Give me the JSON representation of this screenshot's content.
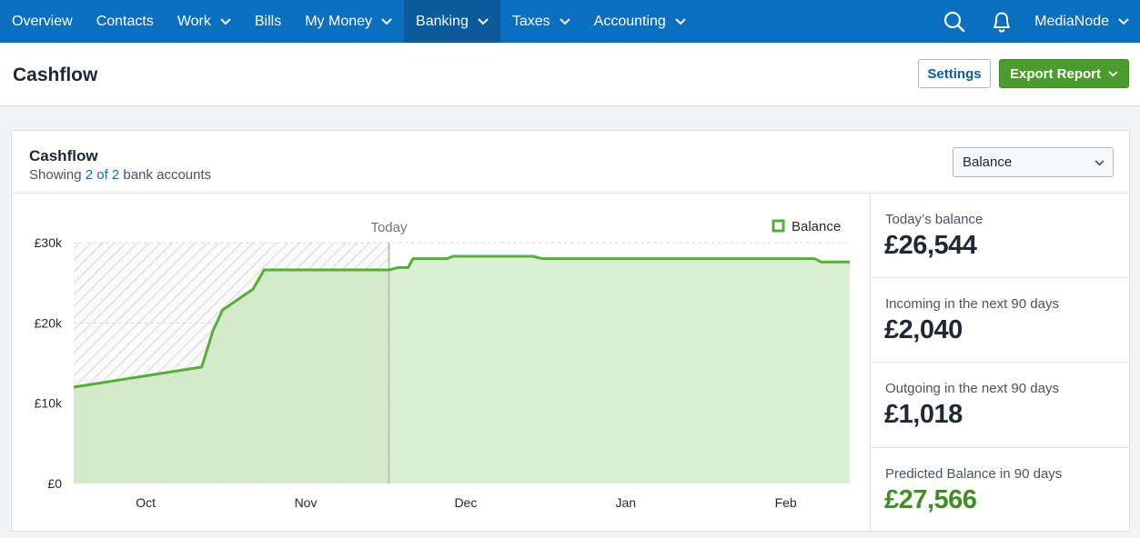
{
  "nav": {
    "items": [
      {
        "label": "Overview",
        "dropdown": false,
        "active": false
      },
      {
        "label": "Contacts",
        "dropdown": false,
        "active": false
      },
      {
        "label": "Work",
        "dropdown": true,
        "active": false
      },
      {
        "label": "Bills",
        "dropdown": false,
        "active": false
      },
      {
        "label": "My Money",
        "dropdown": true,
        "active": false
      },
      {
        "label": "Banking",
        "dropdown": true,
        "active": true
      },
      {
        "label": "Taxes",
        "dropdown": true,
        "active": false
      },
      {
        "label": "Accounting",
        "dropdown": true,
        "active": false
      }
    ],
    "account_label": "MediaNode",
    "icons": [
      "search-icon",
      "bell-icon",
      "chevron-down-icon"
    ]
  },
  "page": {
    "title": "Cashflow",
    "settings_label": "Settings",
    "export_label": "Export Report"
  },
  "card": {
    "title": "Cashflow",
    "subtitle_prefix": "Showing ",
    "subtitle_link": "2 of 2",
    "subtitle_suffix": " bank accounts",
    "select_value": "Balance"
  },
  "stats": [
    {
      "label": "Today’s balance",
      "value": "£26,544",
      "highlight": false
    },
    {
      "label": "Incoming in the next 90 days",
      "value": "£2,040",
      "highlight": false
    },
    {
      "label": "Outgoing in the next 90 days",
      "value": "£1,018",
      "highlight": false
    },
    {
      "label": "Predicted Balance in 90 days",
      "value": "£27,566",
      "highlight": true
    }
  ],
  "colors": {
    "nav": "#0b6fbf",
    "nav_active": "#0a5a9c",
    "accent_green": "#4a9d2c",
    "line_green": "#53b034",
    "fill_green": "#d9eed0",
    "link": "#0b6fbf"
  },
  "chart_data": {
    "type": "area",
    "series": [
      {
        "name": "Balance"
      }
    ],
    "today_label": "Today",
    "today_x": 1.52,
    "x_tick_labels": [
      "Oct",
      "Nov",
      "Dec",
      "Jan",
      "Feb"
    ],
    "y_tick_labels": [
      "£0",
      "£10k",
      "£20k",
      "£30k"
    ],
    "ylim": [
      0,
      30000
    ],
    "xlim": [
      -0.45,
      4.4
    ],
    "grid": true,
    "legend": "top-right",
    "points": [
      [
        -0.45,
        12000
      ],
      [
        0.35,
        14500
      ],
      [
        0.42,
        19000
      ],
      [
        0.48,
        21600
      ],
      [
        0.67,
        24200
      ],
      [
        0.74,
        26600
      ],
      [
        1.52,
        26600
      ],
      [
        1.58,
        26900
      ],
      [
        1.64,
        26900
      ],
      [
        1.67,
        28000
      ],
      [
        1.88,
        28000
      ],
      [
        1.92,
        28300
      ],
      [
        2.42,
        28300
      ],
      [
        2.48,
        28000
      ],
      [
        4.18,
        28000
      ],
      [
        4.22,
        27600
      ],
      [
        4.4,
        27600
      ]
    ]
  }
}
